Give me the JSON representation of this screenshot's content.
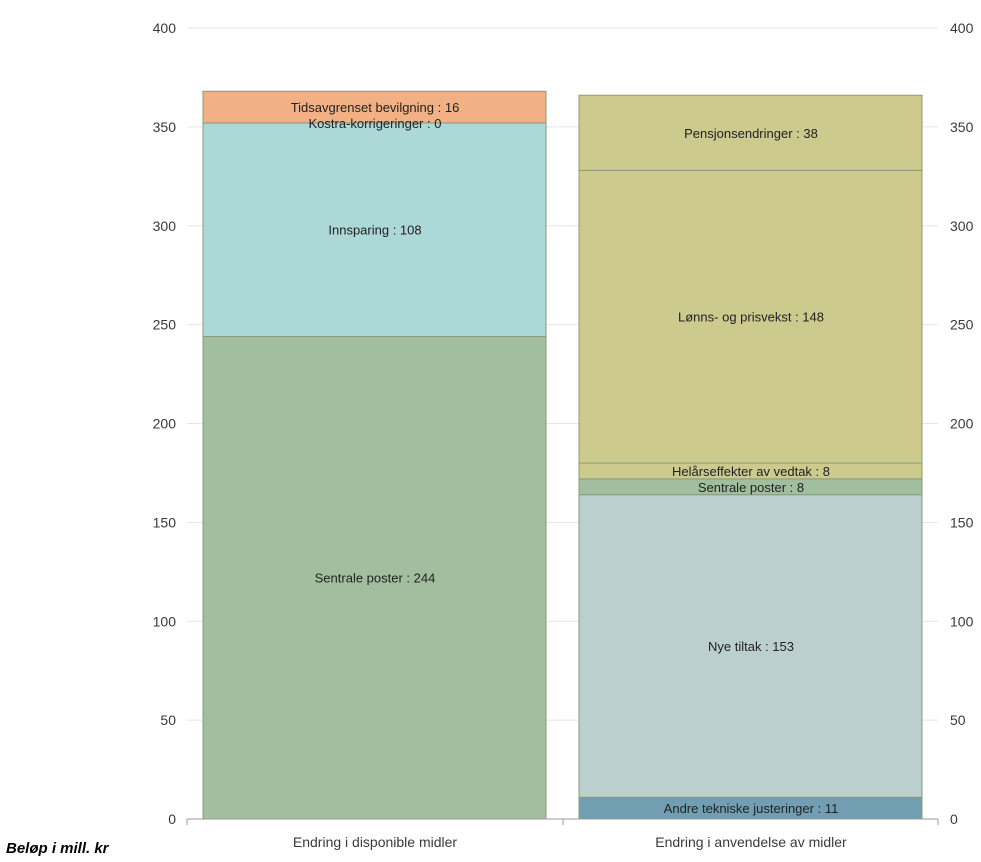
{
  "chart_data": {
    "type": "bar",
    "stacked": true,
    "ylim": [
      0,
      400
    ],
    "yticks": [
      0,
      50,
      100,
      150,
      200,
      250,
      300,
      350,
      400
    ],
    "grid": true,
    "categories": [
      "Endring i disponible midler",
      "Endring i anvendelse av midler"
    ],
    "stacks": [
      {
        "category": "Endring i disponible midler",
        "segments": [
          {
            "name": "Sentrale poster",
            "value": 244,
            "label": "Sentrale poster : 244",
            "color": "#a1bf9f"
          },
          {
            "name": "Innsparing",
            "value": 108,
            "label": "Innsparing : 108",
            "color": "#acd8d7"
          },
          {
            "name": "Kostra-korrigeringer",
            "value": 0,
            "label": "Kostra-korrigeringer : 0",
            "color": "#acd8d7"
          },
          {
            "name": "Tidsavgrenset bevilgning",
            "value": 16,
            "label": "Tidsavgrenset bevilgning : 16",
            "color": "#f1b184"
          }
        ]
      },
      {
        "category": "Endring i anvendelse av midler",
        "segments": [
          {
            "name": "Andre tekniske justeringer",
            "value": 11,
            "label": "Andre tekniske justeringer : 11",
            "color": "#719fb1"
          },
          {
            "name": "Nye tiltak",
            "value": 153,
            "label": "Nye tiltak : 153",
            "color": "#bccfcf"
          },
          {
            "name": "Sentrale poster",
            "value": 8,
            "label": "Sentrale poster : 8",
            "color": "#a1bf9f"
          },
          {
            "name": "Helårseffekter av vedtak",
            "value": 8,
            "label": "Helårseffekter av vedtak  : 8",
            "color": "#ccca8d"
          },
          {
            "name": "Lønns- og prisvekst",
            "value": 148,
            "label": "Lønns- og prisvekst : 148",
            "color": "#ccca8d"
          },
          {
            "name": "Pensjonsendringer",
            "value": 38,
            "label": "Pensjonsendringer : 38",
            "color": "#ccca8d"
          }
        ]
      }
    ],
    "footnote": "Beløp i mill. kr"
  },
  "colors": {
    "grid": "#e4e4e4",
    "axis": "#9a9a9a",
    "segment_border": "#8a9a7a"
  }
}
